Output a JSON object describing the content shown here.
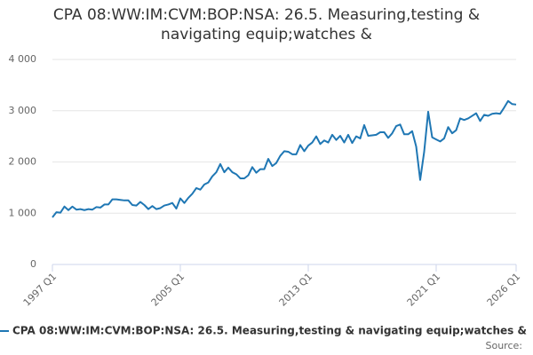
{
  "chart_data": {
    "type": "line",
    "title": "CPA 08:WW:IM:CVM:BOP:NSA: 26.5. Measuring,testing & navigating equip;watches &",
    "categories": [
      "1997 Q1",
      null,
      null,
      null,
      null,
      null,
      null,
      null,
      null,
      null,
      null,
      null,
      null,
      null,
      null,
      null,
      null,
      null,
      null,
      null,
      null,
      null,
      null,
      null,
      null,
      null,
      null,
      null,
      null,
      null,
      null,
      null,
      "2005 Q1",
      null,
      null,
      null,
      null,
      null,
      null,
      null,
      null,
      null,
      null,
      null,
      null,
      null,
      null,
      null,
      null,
      null,
      null,
      null,
      null,
      null,
      null,
      null,
      null,
      null,
      null,
      null,
      null,
      null,
      null,
      null,
      "2013 Q1",
      null,
      null,
      null,
      null,
      null,
      null,
      null,
      null,
      null,
      null,
      null,
      null,
      null,
      null,
      null,
      null,
      null,
      null,
      null,
      null,
      null,
      null,
      null,
      null,
      null,
      null,
      null,
      null,
      null,
      null,
      null,
      "2021 Q1",
      null,
      null,
      null,
      null,
      null,
      null,
      null,
      null,
      null,
      null,
      null,
      null,
      null,
      null,
      null,
      null,
      null,
      null,
      null,
      "2026 Q1"
    ],
    "series": [
      {
        "name": "CPA 08:WW:IM:CVM:BOP:NSA: 26.5. Measuring,testing & navigating equip;watches &",
        "color": "#1f77b4",
        "values": [
          920,
          1020,
          1010,
          1130,
          1060,
          1130,
          1070,
          1080,
          1060,
          1080,
          1070,
          1120,
          1110,
          1170,
          1170,
          1270,
          1270,
          1260,
          1250,
          1250,
          1160,
          1150,
          1220,
          1160,
          1080,
          1140,
          1080,
          1100,
          1150,
          1170,
          1200,
          1090,
          1290,
          1200,
          1300,
          1380,
          1490,
          1460,
          1560,
          1600,
          1720,
          1800,
          1960,
          1800,
          1890,
          1800,
          1760,
          1680,
          1680,
          1740,
          1900,
          1790,
          1860,
          1860,
          2060,
          1920,
          1980,
          2120,
          2210,
          2200,
          2150,
          2150,
          2330,
          2210,
          2320,
          2380,
          2500,
          2350,
          2420,
          2380,
          2530,
          2430,
          2510,
          2380,
          2530,
          2370,
          2500,
          2460,
          2720,
          2510,
          2520,
          2530,
          2580,
          2580,
          2470,
          2560,
          2700,
          2730,
          2540,
          2540,
          2600,
          2300,
          1650,
          2200,
          2980,
          2480,
          2440,
          2400,
          2460,
          2680,
          2560,
          2620,
          2850,
          2820,
          2850,
          2900,
          2950,
          2800,
          2920,
          2900,
          2940,
          2950,
          2940,
          3060,
          3190,
          3130,
          3120
        ]
      }
    ],
    "ylim": [
      0,
      4000
    ],
    "yticks": [
      0,
      {
        "value": 1000,
        "label": "1 000"
      },
      {
        "value": 2000,
        "label": "2 000"
      },
      {
        "value": 3000,
        "label": "3 000"
      },
      {
        "value": 4000,
        "label": "4 000"
      }
    ],
    "grid": true,
    "source": "Source:"
  }
}
